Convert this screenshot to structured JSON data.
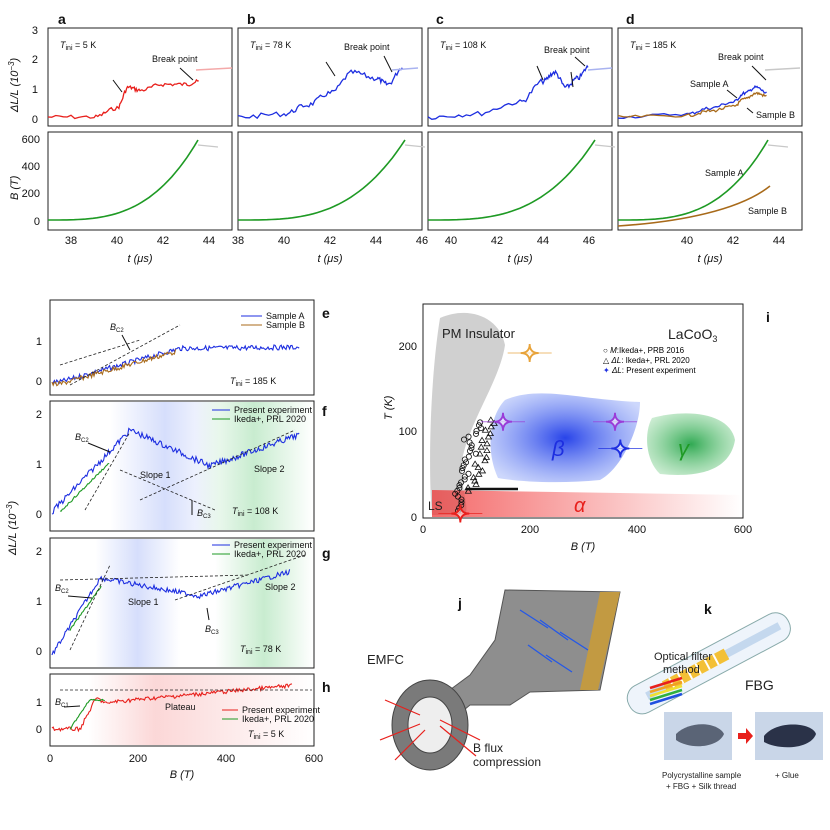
{
  "panel_labels": [
    "a",
    "b",
    "c",
    "d",
    "e",
    "f",
    "g",
    "h",
    "i",
    "j",
    "k"
  ],
  "top_row": {
    "y_label_top": "ΔL/L (10",
    "y_label_top_exp": "−3",
    "y_label_top_close": ")",
    "y_label_bottom": "B (T)",
    "x_label": "t (μs)",
    "panels": [
      {
        "id": "a",
        "tini": "T",
        "tini_sub": "ini",
        "tini_val": " = 5 K",
        "break_label": "Break point",
        "x_ticks": [
          "38",
          "40",
          "42",
          "44"
        ],
        "xlim": [
          37,
          45
        ]
      },
      {
        "id": "b",
        "tini": "T",
        "tini_sub": "ini",
        "tini_val": " = 78 K",
        "break_label": "Break point",
        "x_ticks": [
          "38",
          "40",
          "42",
          "44",
          "46"
        ],
        "xlim": [
          38,
          46
        ]
      },
      {
        "id": "c",
        "tini": "T",
        "tini_sub": "ini",
        "tini_val": " = 108 K",
        "break_label": "Break point",
        "x_ticks": [
          "40",
          "42",
          "44",
          "46"
        ],
        "xlim": [
          39,
          47
        ]
      },
      {
        "id": "d",
        "tini": "T",
        "tini_sub": "ini",
        "tini_val": " = 185 K",
        "break_label": "Break point",
        "sample_a": "Sample A",
        "sample_b": "Sample B",
        "x_ticks": [
          "40",
          "42",
          "44"
        ],
        "xlim": [
          37,
          45
        ]
      }
    ],
    "dl_ticks": [
      "0",
      "1",
      "2",
      "3"
    ],
    "b_ticks": [
      "0",
      "200",
      "400",
      "600"
    ]
  },
  "left_stack": {
    "y_label": "ΔL/L (10",
    "y_label_exp": "−3",
    "y_label_close": ")",
    "x_label": "B (T)",
    "x_ticks": [
      "0",
      "200",
      "400",
      "600"
    ],
    "e": {
      "legend": [
        "Sample A",
        "Sample B"
      ],
      "bc": "B",
      "bc_sub": "C2",
      "tini": "T",
      "tini_sub": "ini",
      "tini_val": " = 185 K",
      "y_ticks": [
        "0",
        "1"
      ]
    },
    "f": {
      "legend": [
        "Present experiment",
        "Ikeda+,  PRL 2020"
      ],
      "bc2": "B",
      "bc2_sub": "C2",
      "bc3": "B",
      "bc3_sub": "C3",
      "slope1": "Slope 1",
      "slope2": "Slope 2",
      "tini": "T",
      "tini_sub": "ini",
      "tini_val": " = 108 K",
      "y_ticks": [
        "0",
        "1",
        "2"
      ]
    },
    "g": {
      "legend": [
        "Present experiment",
        "Ikeda+,  PRL 2020"
      ],
      "bc2": "B",
      "bc2_sub": "C2",
      "bc3": "B",
      "bc3_sub": "C3",
      "slope1": "Slope 1",
      "slope2": "Slope 2",
      "tini": "T",
      "tini_sub": "ini",
      "tini_val": " = 78 K",
      "y_ticks": [
        "0",
        "1",
        "2"
      ]
    },
    "h": {
      "legend": [
        "Present experiment",
        "Ikeda+,  PRL 2020"
      ],
      "bc1": "B",
      "bc1_sub": "C1",
      "plateau": "Plateau",
      "tini": "T",
      "tini_sub": "ini",
      "tini_val": " = 5 K",
      "y_ticks": [
        "0",
        "1"
      ]
    }
  },
  "phase_diagram": {
    "title": "LaCoO",
    "title_sub": "3",
    "pm": "PM Insulator",
    "ls": "LS",
    "alpha": "α",
    "beta": "β",
    "gamma": "γ",
    "x_label": "B (T)",
    "y_label": "T (K)",
    "x_ticks": [
      "0",
      "200",
      "400",
      "600"
    ],
    "y_ticks": [
      "0",
      "100",
      "200"
    ],
    "legend": [
      {
        "sym": "○",
        "pre": "M",
        "text": ":Ikeda+, PRB 2016"
      },
      {
        "sym": "△",
        "pre": "ΔL",
        "text": ": Ikeda+, PRL 2020"
      },
      {
        "sym": "✦",
        "pre": "ΔL",
        "text": ": Present experiment"
      }
    ]
  },
  "j": {
    "emfc": "EMFC",
    "flux1": "B flux",
    "flux2": "compression"
  },
  "k": {
    "optical1": "Optical filter",
    "optical2": "method",
    "fbg": "FBG",
    "cap1": "Polycrystalline sample",
    "cap2": "+ FBG + Silk thread",
    "cap3": "+ Glue"
  },
  "colors": {
    "red": "#e8201c",
    "blue": "#1d2ee0",
    "green": "#1e9a24",
    "brown": "#a86a1a",
    "orange": "#e8a33a",
    "purple": "#9a3cd8",
    "gray": "#c8c8c8"
  },
  "chart_data": [
    {
      "type": "line",
      "title": "a",
      "x": [
        37,
        39,
        40,
        40.5,
        41,
        42,
        43,
        43.6
      ],
      "y": [
        0,
        0,
        0.3,
        1.0,
        0.9,
        1.1,
        1.1,
        1.2
      ],
      "xlabel": "t (μs)",
      "ylabel": "ΔL/L (10^-3)",
      "ylim": [
        -0.3,
        3
      ]
    },
    {
      "type": "line",
      "title": "b",
      "x": [
        38,
        40,
        41,
        42,
        43,
        44,
        44.5,
        45.2
      ],
      "y": [
        0,
        0.1,
        0.4,
        0.8,
        1.5,
        1.3,
        1.1,
        1.7
      ],
      "xlabel": "t (μs)",
      "ylabel": "ΔL/L (10^-3)",
      "ylim": [
        -0.3,
        3
      ]
    },
    {
      "type": "line",
      "title": "c",
      "x": [
        39,
        41,
        43,
        44,
        44.5,
        45,
        45.5,
        46
      ],
      "y": [
        0,
        0.1,
        0.5,
        1.2,
        1.5,
        1.0,
        1.3,
        1.7
      ],
      "xlabel": "t (μs)",
      "ylabel": "ΔL/L (10^-3)",
      "ylim": [
        -0.3,
        3
      ]
    },
    {
      "type": "line",
      "title": "d",
      "series": [
        {
          "name": "Sample A",
          "x": [
            37,
            40,
            41,
            42,
            42.5,
            43,
            43.5
          ],
          "y": [
            0,
            0.1,
            0.3,
            0.5,
            0.8,
            1.0,
            0.8
          ]
        },
        {
          "name": "Sample B",
          "x": [
            37,
            40,
            41,
            42,
            42.5,
            43,
            43.5
          ],
          "y": [
            0,
            0.05,
            0.2,
            0.35,
            0.6,
            0.8,
            0.7
          ]
        }
      ],
      "xlabel": "t (μs)",
      "ylim": [
        -0.3,
        3
      ]
    },
    {
      "type": "scatter",
      "title": "i",
      "xlabel": "B (T)",
      "ylabel": "T (K)",
      "xlim": [
        0,
        600
      ],
      "ylim": [
        0,
        240
      ],
      "series": [
        {
          "name": "Present experiment",
          "x": [
            70,
            150,
            200,
            360,
            370
          ],
          "y": [
            5,
            108,
            185,
            108,
            78
          ]
        }
      ]
    }
  ]
}
